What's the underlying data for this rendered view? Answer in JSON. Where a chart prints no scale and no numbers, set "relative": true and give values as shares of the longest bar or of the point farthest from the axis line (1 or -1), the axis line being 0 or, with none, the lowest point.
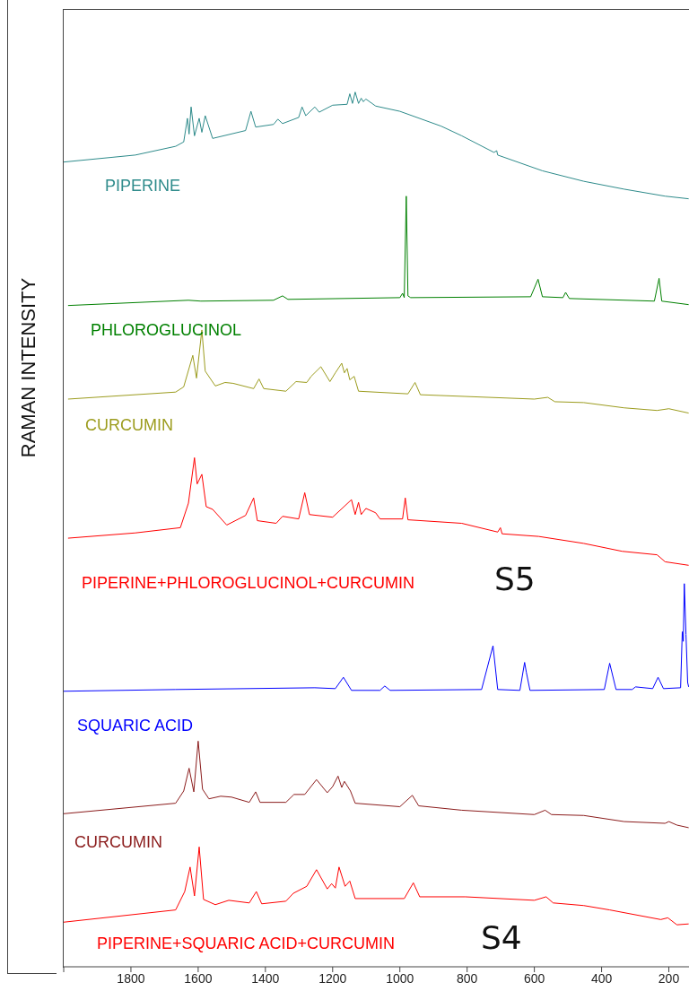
{
  "chart_data": {
    "type": "line",
    "ylabel": "RAMAN INTENSITY",
    "relative": true,
    "xlim": [
      2000,
      140
    ],
    "xticks": [
      {
        "value": 2000,
        "label": null
      },
      1800,
      1600,
      1400,
      1200,
      1000,
      800,
      600,
      400,
      200
    ],
    "annotations": [
      "S5",
      "S4"
    ],
    "series": [
      {
        "name": "PIPERINE",
        "color": "#2e8b8b",
        "x": [
          2000,
          1787,
          1667,
          1643,
          1632,
          1627,
          1621,
          1611,
          1597,
          1589,
          1579,
          1557,
          1459,
          1443,
          1429,
          1376,
          1363,
          1349,
          1301,
          1291,
          1280,
          1253,
          1240,
          1200,
          1157,
          1149,
          1141,
          1133,
          1123,
          1115,
          1109,
          1101,
          1072,
          1000,
          877,
          816,
          720,
          712,
          709,
          576,
          453,
          333,
          211,
          141
        ],
        "values": [
          0.92,
          0.928,
          0.938,
          0.943,
          0.97,
          0.952,
          0.983,
          0.95,
          0.97,
          0.954,
          0.973,
          0.947,
          0.956,
          0.978,
          0.96,
          0.963,
          0.969,
          0.964,
          0.971,
          0.983,
          0.973,
          0.983,
          0.977,
          0.985,
          0.986,
          0.998,
          0.987,
          1,
          0.987,
          0.993,
          0.989,
          0.992,
          0.984,
          0.978,
          0.961,
          0.95,
          0.931,
          0.933,
          0.928,
          0.91,
          0.898,
          0.889,
          0.881,
          0.878
        ]
      },
      {
        "name": "PHLOROGLUCINOL",
        "color": "#008000",
        "x": [
          1987,
          1629,
          1592,
          1376,
          1349,
          1333,
          1000,
          992,
          987,
          981,
          976,
          968,
          611,
          589,
          576,
          515,
          507,
          496,
          243,
          229,
          221,
          141
        ],
        "values": [
          0.756,
          0.762,
          0.761,
          0.762,
          0.767,
          0.763,
          0.765,
          0.77,
          0.765,
          0.881,
          0.767,
          0.765,
          0.766,
          0.786,
          0.766,
          0.765,
          0.771,
          0.764,
          0.761,
          0.787,
          0.761,
          0.757
        ]
      },
      {
        "name": "CURCUMIN",
        "color": "#9c9c1e",
        "x": [
          1987,
          1667,
          1643,
          1616,
          1605,
          1589,
          1579,
          1549,
          1520,
          1496,
          1435,
          1419,
          1405,
          1339,
          1309,
          1277,
          1264,
          1235,
          1208,
          1192,
          1173,
          1165,
          1157,
          1149,
          1136,
          1123,
          976,
          955,
          939,
          600,
          560,
          539,
          453,
          333,
          235,
          200,
          141
        ],
        "values": [
          0.649,
          0.657,
          0.663,
          0.699,
          0.673,
          0.728,
          0.681,
          0.664,
          0.668,
          0.667,
          0.661,
          0.672,
          0.661,
          0.658,
          0.669,
          0.668,
          0.675,
          0.686,
          0.669,
          0.679,
          0.69,
          0.679,
          0.684,
          0.671,
          0.675,
          0.658,
          0.655,
          0.668,
          0.654,
          0.649,
          0.651,
          0.646,
          0.645,
          0.639,
          0.636,
          0.638,
          0.633
        ]
      },
      {
        "name": "PIPERINE+PHLOROGLUCINOL+CURCUMIN",
        "color": "#ff0000",
        "x": [
          1987,
          1787,
          1653,
          1629,
          1611,
          1603,
          1589,
          1576,
          1557,
          1515,
          1459,
          1435,
          1424,
          1368,
          1349,
          1301,
          1283,
          1269,
          1200,
          1144,
          1133,
          1123,
          1115,
          1101,
          1072,
          1059,
          992,
          984,
          976,
          816,
          709,
          701,
          696,
          587,
          453,
          339,
          235,
          211,
          141
        ],
        "values": [
          0.49,
          0.496,
          0.502,
          0.53,
          0.582,
          0.552,
          0.563,
          0.526,
          0.523,
          0.505,
          0.516,
          0.536,
          0.51,
          0.507,
          0.515,
          0.512,
          0.542,
          0.517,
          0.514,
          0.534,
          0.517,
          0.531,
          0.517,
          0.524,
          0.519,
          0.512,
          0.512,
          0.536,
          0.511,
          0.507,
          0.497,
          0.502,
          0.495,
          0.492,
          0.484,
          0.475,
          0.471,
          0.463,
          0.459
        ]
      },
      {
        "name": "SQUARIC ACID",
        "color": "#0000ff",
        "x": [
          2000,
          1667,
          1253,
          1192,
          1168,
          1144,
          1059,
          1045,
          1029,
          757,
          723,
          709,
          643,
          629,
          624,
          613,
          392,
          376,
          357,
          309,
          299,
          248,
          232,
          216,
          165,
          160,
          157,
          154,
          149,
          144,
          141
        ],
        "values": [
          0.315,
          0.317,
          0.319,
          0.318,
          0.331,
          0.316,
          0.316,
          0.321,
          0.316,
          0.317,
          0.367,
          0.317,
          0.316,
          0.348,
          0.337,
          0.316,
          0.317,
          0.347,
          0.317,
          0.317,
          0.32,
          0.318,
          0.331,
          0.318,
          0.319,
          0.383,
          0.372,
          0.438,
          0.38,
          0.325,
          0.32
        ]
      },
      {
        "name": "CURCUMIN",
        "color": "#8b1c1c",
        "x": [
          2000,
          1667,
          1643,
          1627,
          1613,
          1600,
          1587,
          1568,
          1533,
          1501,
          1448,
          1429,
          1416,
          1339,
          1315,
          1283,
          1248,
          1216,
          1200,
          1184,
          1173,
          1165,
          1147,
          1133,
          1000,
          963,
          944,
          816,
          600,
          568,
          549,
          453,
          333,
          211,
          200,
          176,
          141
        ],
        "values": [
          0.175,
          0.187,
          0.201,
          0.227,
          0.2,
          0.258,
          0.203,
          0.192,
          0.195,
          0.194,
          0.188,
          0.2,
          0.188,
          0.188,
          0.197,
          0.197,
          0.214,
          0.199,
          0.206,
          0.218,
          0.205,
          0.212,
          0.201,
          0.187,
          0.183,
          0.196,
          0.184,
          0.179,
          0.174,
          0.179,
          0.174,
          0.173,
          0.166,
          0.164,
          0.166,
          0.162,
          0.159
        ]
      },
      {
        "name": "PIPERINE+SQUARIC ACID+CURCUMIN",
        "color": "#ff0000",
        "x": [
          2000,
          1667,
          1640,
          1624,
          1611,
          1597,
          1584,
          1549,
          1509,
          1448,
          1427,
          1411,
          1339,
          1317,
          1277,
          1248,
          1216,
          1203,
          1192,
          1181,
          1163,
          1149,
          1133,
          987,
          960,
          941,
          805,
          600,
          565,
          544,
          453,
          376,
          224,
          203,
          176,
          141
        ],
        "values": [
          0.051,
          0.065,
          0.086,
          0.114,
          0.081,
          0.137,
          0.077,
          0.071,
          0.076,
          0.073,
          0.086,
          0.072,
          0.075,
          0.084,
          0.092,
          0.111,
          0.089,
          0.095,
          0.09,
          0.114,
          0.092,
          0.098,
          0.078,
          0.078,
          0.096,
          0.08,
          0.08,
          0.076,
          0.08,
          0.073,
          0.07,
          0.065,
          0.054,
          0.056,
          0.048,
          0.049
        ]
      }
    ]
  }
}
